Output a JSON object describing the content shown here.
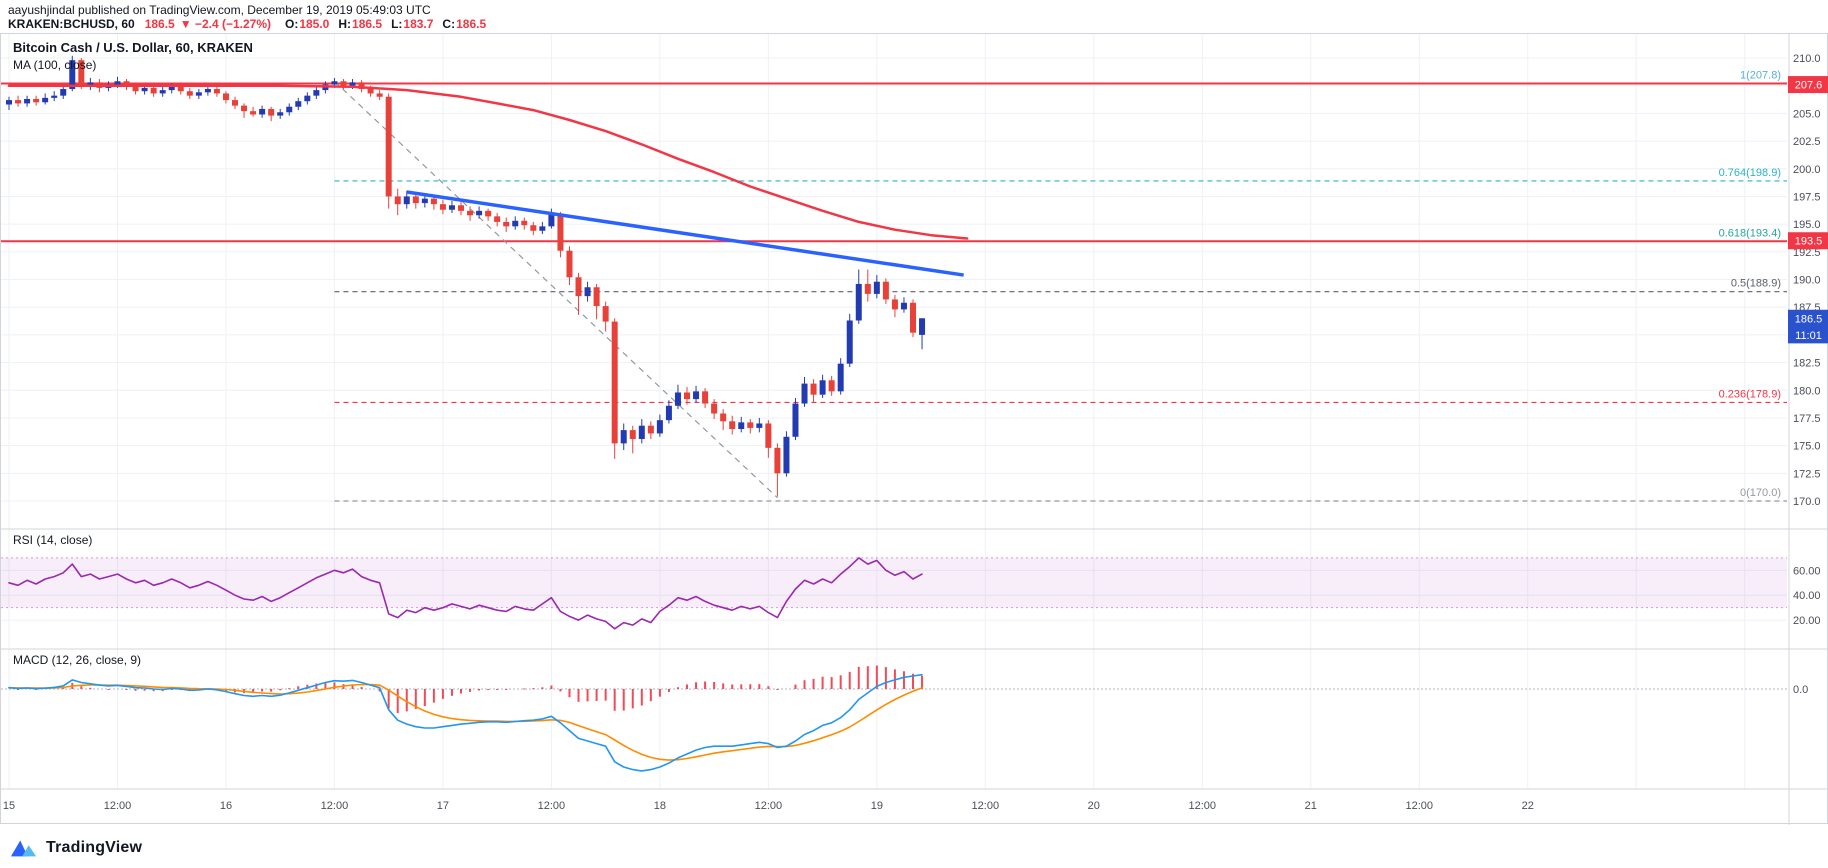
{
  "attribution": {
    "line1": "aayushjindal published on TradingView.com, December 19, 2019 05:49:03 UTC"
  },
  "quote_bar": {
    "symbol": "KRAKEN:BCHUSD, 60",
    "last": "186.5",
    "change": "▼ −2.4 (−1.27%)",
    "ohlc": [
      {
        "label": "O:",
        "value": "185.0"
      },
      {
        "label": "H:",
        "value": "186.5"
      },
      {
        "label": "L:",
        "value": "183.7"
      },
      {
        "label": "C:",
        "value": "186.5"
      }
    ]
  },
  "footer": {
    "brand": "TradingView"
  },
  "chart_data": {
    "type": "candlestick",
    "title": "Bitcoin Cash / U.S. Dollar, 60, KRAKEN",
    "symbol": "KRAKEN:BCHUSD",
    "interval_minutes": 60,
    "price_axis_labels": [
      210.0,
      205.0,
      202.5,
      200.0,
      197.5,
      195.0,
      192.5,
      190.0,
      187.5,
      182.5,
      180.0,
      177.5,
      175.0,
      172.5,
      170.0
    ],
    "time_axis_labels": [
      {
        "text": "15",
        "hour": 0
      },
      {
        "text": "12:00",
        "hour": 12
      },
      {
        "text": "16",
        "hour": 24
      },
      {
        "text": "12:00",
        "hour": 36
      },
      {
        "text": "17",
        "hour": 48
      },
      {
        "text": "12:00",
        "hour": 60
      },
      {
        "text": "18",
        "hour": 72
      },
      {
        "text": "12:00",
        "hour": 84
      },
      {
        "text": "19",
        "hour": 96
      },
      {
        "text": "12:00",
        "hour": 108
      },
      {
        "text": "20",
        "hour": 120
      },
      {
        "text": "12:00",
        "hour": 132
      },
      {
        "text": "21",
        "hour": 144
      },
      {
        "text": "12:00",
        "hour": 156
      },
      {
        "text": "22",
        "hour": 168
      }
    ],
    "candles": [
      [
        205.8,
        206.5,
        205.3,
        206.2
      ],
      [
        206.2,
        206.6,
        205.6,
        205.9
      ],
      [
        205.9,
        206.6,
        205.6,
        206.3
      ],
      [
        206.3,
        206.6,
        205.7,
        206.0
      ],
      [
        206.0,
        206.8,
        205.8,
        206.4
      ],
      [
        206.4,
        207.0,
        206.1,
        206.6
      ],
      [
        206.6,
        207.5,
        206.3,
        207.2
      ],
      [
        207.2,
        210.2,
        207.0,
        209.8
      ],
      [
        209.8,
        210.0,
        207.2,
        207.5
      ],
      [
        207.5,
        208.2,
        207.1,
        207.8
      ],
      [
        207.8,
        208.1,
        206.9,
        207.3
      ],
      [
        207.3,
        207.9,
        207.0,
        207.6
      ],
      [
        207.6,
        208.3,
        207.3,
        207.9
      ],
      [
        207.9,
        208.1,
        207.1,
        207.4
      ],
      [
        207.4,
        207.7,
        206.7,
        207.0
      ],
      [
        207.0,
        207.6,
        206.7,
        207.3
      ],
      [
        207.3,
        207.5,
        206.5,
        206.8
      ],
      [
        206.8,
        207.4,
        206.5,
        207.1
      ],
      [
        207.1,
        207.7,
        206.8,
        207.4
      ],
      [
        207.4,
        207.6,
        206.7,
        207.0
      ],
      [
        207.0,
        207.3,
        206.3,
        206.6
      ],
      [
        206.6,
        207.2,
        206.3,
        206.9
      ],
      [
        206.9,
        207.5,
        206.6,
        207.2
      ],
      [
        207.2,
        207.4,
        206.5,
        206.8
      ],
      [
        206.8,
        207.0,
        205.9,
        206.2
      ],
      [
        206.2,
        206.5,
        205.4,
        205.7
      ],
      [
        205.7,
        205.9,
        204.6,
        205.2
      ],
      [
        205.2,
        205.6,
        204.7,
        204.9
      ],
      [
        204.9,
        205.7,
        204.6,
        205.4
      ],
      [
        205.4,
        205.6,
        204.3,
        204.8
      ],
      [
        204.8,
        205.4,
        204.5,
        205.1
      ],
      [
        205.1,
        205.9,
        204.8,
        205.6
      ],
      [
        205.6,
        206.4,
        205.3,
        206.1
      ],
      [
        206.1,
        206.9,
        205.8,
        206.6
      ],
      [
        206.6,
        207.4,
        206.3,
        207.1
      ],
      [
        207.1,
        207.9,
        206.8,
        207.6
      ],
      [
        207.6,
        208.2,
        207.3,
        207.9
      ],
      [
        207.9,
        208.1,
        207.2,
        207.5
      ],
      [
        207.5,
        208.1,
        207.2,
        207.8
      ],
      [
        207.8,
        208.0,
        206.9,
        207.2
      ],
      [
        207.2,
        207.5,
        206.5,
        206.8
      ],
      [
        206.8,
        207.1,
        206.2,
        206.5
      ],
      [
        206.5,
        206.8,
        196.4,
        197.5
      ],
      [
        197.5,
        198.2,
        195.8,
        196.8
      ],
      [
        196.8,
        198.0,
        196.4,
        197.5
      ],
      [
        197.5,
        197.8,
        196.4,
        196.9
      ],
      [
        196.9,
        197.8,
        196.5,
        197.3
      ],
      [
        197.3,
        197.6,
        196.3,
        196.8
      ],
      [
        196.8,
        197.2,
        195.9,
        196.3
      ],
      [
        196.3,
        197.1,
        196.0,
        196.7
      ],
      [
        196.7,
        197.0,
        195.8,
        196.2
      ],
      [
        196.2,
        196.6,
        195.3,
        195.8
      ],
      [
        195.8,
        196.6,
        195.5,
        196.2
      ],
      [
        196.2,
        196.4,
        195.3,
        195.7
      ],
      [
        195.7,
        196.0,
        194.8,
        195.2
      ],
      [
        195.2,
        195.6,
        194.3,
        194.8
      ],
      [
        194.8,
        195.7,
        194.5,
        195.3
      ],
      [
        195.3,
        195.6,
        194.5,
        194.9
      ],
      [
        194.9,
        195.2,
        194.0,
        194.4
      ],
      [
        194.4,
        195.2,
        194.1,
        194.8
      ],
      [
        194.8,
        196.4,
        194.6,
        195.9
      ],
      [
        195.9,
        196.1,
        192.0,
        192.6
      ],
      [
        192.6,
        193.0,
        189.5,
        190.2
      ],
      [
        190.2,
        190.6,
        186.8,
        188.5
      ],
      [
        188.5,
        189.8,
        188.0,
        189.3
      ],
      [
        189.3,
        189.6,
        186.4,
        187.6
      ],
      [
        187.6,
        188.0,
        185.3,
        186.2
      ],
      [
        186.2,
        186.5,
        173.8,
        175.2
      ],
      [
        175.2,
        177.0,
        174.6,
        176.4
      ],
      [
        176.4,
        176.8,
        174.3,
        175.6
      ],
      [
        175.6,
        177.4,
        175.2,
        176.8
      ],
      [
        176.8,
        177.2,
        175.6,
        176.1
      ],
      [
        176.1,
        177.8,
        175.8,
        177.3
      ],
      [
        177.3,
        179.1,
        177.0,
        178.6
      ],
      [
        178.6,
        180.5,
        178.3,
        179.8
      ],
      [
        179.8,
        180.3,
        178.7,
        179.2
      ],
      [
        179.2,
        180.4,
        178.9,
        179.9
      ],
      [
        179.9,
        180.2,
        178.4,
        178.8
      ],
      [
        178.8,
        179.2,
        177.4,
        177.9
      ],
      [
        177.9,
        178.3,
        176.4,
        177.2
      ],
      [
        177.2,
        177.7,
        176.0,
        176.5
      ],
      [
        176.5,
        177.6,
        176.2,
        177.1
      ],
      [
        177.1,
        177.4,
        176.1,
        176.6
      ],
      [
        176.6,
        177.5,
        176.2,
        177.0
      ],
      [
        177.0,
        177.3,
        173.9,
        174.8
      ],
      [
        174.8,
        175.2,
        170.4,
        172.5
      ],
      [
        172.5,
        176.3,
        172.2,
        175.8
      ],
      [
        175.8,
        179.3,
        175.5,
        178.8
      ],
      [
        178.8,
        181.2,
        178.5,
        180.6
      ],
      [
        180.6,
        181.0,
        178.9,
        179.6
      ],
      [
        179.6,
        181.4,
        179.3,
        180.9
      ],
      [
        180.9,
        181.3,
        179.5,
        179.9
      ],
      [
        179.9,
        182.9,
        179.6,
        182.4
      ],
      [
        182.4,
        186.9,
        182.1,
        186.3
      ],
      [
        186.3,
        190.9,
        186.0,
        189.6
      ],
      [
        189.6,
        190.9,
        188.0,
        188.7
      ],
      [
        188.7,
        190.4,
        188.3,
        189.8
      ],
      [
        189.8,
        190.1,
        187.8,
        188.2
      ],
      [
        188.2,
        188.6,
        186.6,
        187.3
      ],
      [
        187.3,
        188.4,
        187.0,
        187.9
      ],
      [
        187.9,
        188.2,
        184.8,
        185.2
      ],
      [
        185.0,
        186.5,
        183.7,
        186.5
      ]
    ],
    "ma100": {
      "label": "MA (100, close)",
      "color": "#f23645",
      "points": [
        [
          0,
          207.5
        ],
        [
          30,
          207.5
        ],
        [
          38,
          207.4
        ],
        [
          44,
          207.1
        ],
        [
          50,
          206.5
        ],
        [
          54,
          205.9
        ],
        [
          58,
          205.3
        ],
        [
          62,
          204.4
        ],
        [
          66,
          203.4
        ],
        [
          70,
          202.2
        ],
        [
          74,
          200.9
        ],
        [
          78,
          199.7
        ],
        [
          82,
          198.4
        ],
        [
          86,
          197.3
        ],
        [
          90,
          196.2
        ],
        [
          94,
          195.2
        ],
        [
          98,
          194.5
        ],
        [
          102,
          194.0
        ],
        [
          106,
          193.7
        ]
      ]
    },
    "fib_retracement": {
      "start_index": 36,
      "levels": [
        {
          "label": "1(207.8)",
          "price": 207.8,
          "line_price": 207.7,
          "style": "solid",
          "full_width": true,
          "line_color": "#f23645",
          "label_color": "#54b0d8"
        },
        {
          "label": "0.764(198.9)",
          "price": 198.9,
          "style": "dashed",
          "full_width": false,
          "line_color": "#2bb3c4",
          "label_color": "#2bb3c4"
        },
        {
          "label": "0.618(193.4)",
          "price": 193.4,
          "line_price": 193.45,
          "style": "solid",
          "full_width": true,
          "line_color": "#f23645",
          "label_color": "#26a69a"
        },
        {
          "label": "0.5(188.9)",
          "price": 188.9,
          "style": "dashed",
          "full_width": false,
          "line_color": "#5d606b",
          "label_color": "#5d606b"
        },
        {
          "label": "0.236(178.9)",
          "price": 178.9,
          "style": "dashed",
          "full_width": false,
          "line_color": "#f23645",
          "label_color": "#f23645"
        },
        {
          "label": "0(170.0)",
          "price": 170.0,
          "style": "dashed",
          "full_width": false,
          "line_color": "#9598a1",
          "label_color": "#9598a1"
        }
      ]
    },
    "trend_lines": [
      {
        "name": "blue-resistance-trendline",
        "color": "#2962ff",
        "width": 3.5,
        "style": "solid",
        "layer": "front",
        "from": {
          "index": 44,
          "price": 197.9
        },
        "to": {
          "index": 105.6,
          "price": 190.4
        }
      },
      {
        "name": "fib-diagonal",
        "color": "#9598a1",
        "width": 1.2,
        "style": "dashed",
        "layer": "back",
        "from": {
          "index": 36,
          "price": 207.9
        },
        "to": {
          "index": 85,
          "price": 170.3
        }
      }
    ],
    "price_badges": [
      {
        "text": "207.6",
        "price": 207.6,
        "color": "#f23645"
      },
      {
        "text": "193.5",
        "price": 193.5,
        "color": "#f23645"
      },
      {
        "text": "186.5",
        "price": 186.5,
        "color": "#2a52cc"
      },
      {
        "text": "11:01",
        "price": 185.0,
        "color": "#2a52cc"
      }
    ],
    "rsi": {
      "label": "RSI (14, close)",
      "band": [
        30,
        70
      ],
      "axis_labels": [
        {
          "text": "60.00",
          "value": 60
        },
        {
          "text": "40.00",
          "value": 40
        },
        {
          "text": "20.00",
          "value": 20
        }
      ],
      "values": [
        50,
        48,
        52,
        49,
        53,
        55,
        58,
        65,
        55,
        57,
        53,
        55,
        57,
        53,
        50,
        52,
        48,
        50,
        53,
        50,
        46,
        48,
        51,
        48,
        44,
        40,
        37,
        36,
        39,
        35,
        38,
        42,
        46,
        50,
        54,
        57,
        60,
        58,
        61,
        55,
        52,
        50,
        25,
        22,
        28,
        26,
        30,
        28,
        30,
        33,
        31,
        29,
        32,
        30,
        28,
        27,
        31,
        29,
        28,
        33,
        38,
        27,
        23,
        20,
        24,
        21,
        19,
        13,
        18,
        16,
        21,
        18,
        27,
        32,
        38,
        36,
        39,
        35,
        32,
        30,
        28,
        31,
        29,
        31,
        26,
        22,
        35,
        45,
        52,
        49,
        53,
        50,
        57,
        63,
        70,
        65,
        68,
        60,
        56,
        59,
        53,
        57
      ]
    },
    "macd": {
      "label": "MACD (12, 26, close, 9)",
      "axis_labels": [
        {
          "text": "0.0",
          "value": 0
        }
      ],
      "values": [
        0.05,
        0.02,
        0.04,
        0.01,
        0.03,
        0.06,
        0.12,
        0.35,
        0.25,
        0.2,
        0.15,
        0.12,
        0.14,
        0.1,
        0.05,
        0.04,
        0,
        -0.02,
        0.02,
        0,
        -0.05,
        -0.04,
        0,
        -0.03,
        -0.1,
        -0.18,
        -0.25,
        -0.28,
        -0.25,
        -0.28,
        -0.24,
        -0.15,
        -0.05,
        0.05,
        0.15,
        0.25,
        0.32,
        0.3,
        0.33,
        0.25,
        0.15,
        0.05,
        -0.8,
        -1.2,
        -1.35,
        -1.45,
        -1.5,
        -1.5,
        -1.45,
        -1.4,
        -1.35,
        -1.32,
        -1.28,
        -1.26,
        -1.26,
        -1.28,
        -1.25,
        -1.22,
        -1.2,
        -1.15,
        -1.05,
        -1.3,
        -1.6,
        -1.9,
        -2.0,
        -2.1,
        -2.2,
        -2.8,
        -3.0,
        -3.1,
        -3.15,
        -3.1,
        -3.0,
        -2.85,
        -2.65,
        -2.5,
        -2.35,
        -2.25,
        -2.2,
        -2.2,
        -2.2,
        -2.15,
        -2.1,
        -2.05,
        -2.1,
        -2.25,
        -2.2,
        -2.0,
        -1.75,
        -1.6,
        -1.4,
        -1.3,
        -1.1,
        -0.8,
        -0.4,
        -0.15,
        0.1,
        0.25,
        0.35,
        0.45,
        0.5,
        0.55
      ]
    },
    "colors": {
      "up": "#233bb2",
      "down": "#e8413a",
      "grid": "#eef1f6",
      "axis_text": "#4a4e59",
      "pane_border": "#d1d4dc",
      "rsi_line": "#9c27b0",
      "rsi_band_fill": "rgba(156,39,176,0.08)",
      "rsi_band_edge": "rgba(156,39,176,0.45)",
      "macd_line": "#2196f3",
      "signal_line": "#ff8b00",
      "histogram": "#f23645",
      "background": "#ffffff"
    }
  }
}
